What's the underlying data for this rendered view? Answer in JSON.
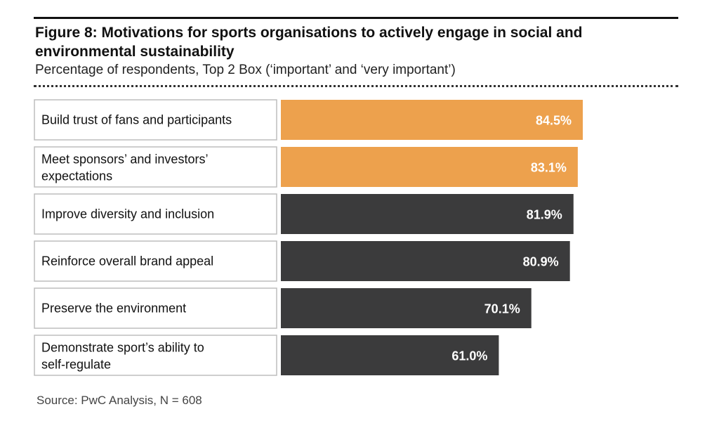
{
  "figure": {
    "title": "Figure 8: Motivations for sports organisations to actively engage in social and environmental sustainability",
    "subtitle": "Percentage of respondents, Top 2 Box (‘important’ and ‘very important’)",
    "source": "Source: PwC Analysis, N = 608"
  },
  "colors": {
    "highlight": "#EDA14D",
    "default": "#3B3B3C",
    "label_border": "#BDBDBD"
  },
  "chart_data": {
    "type": "bar",
    "orientation": "horizontal",
    "title": "Figure 8: Motivations for sports organisations to actively engage in social and environmental sustainability",
    "subtitle": "Percentage of respondents, Top 2 Box (‘important’ and ‘very important’)",
    "unit": "%",
    "xlim": [
      0,
      100
    ],
    "grid": false,
    "categories": [
      "Build trust of fans and participants",
      "Meet sponsors’ and investors’ expectations",
      "Improve diversity and inclusion",
      "Reinforce overall brand appeal",
      "Preserve the environment",
      "Demonstrate sport’s ability to self-regulate"
    ],
    "category_lines": [
      [
        "Build trust of fans and participants"
      ],
      [
        "Meet sponsors’ and investors’",
        "expectations"
      ],
      [
        "Improve diversity and inclusion"
      ],
      [
        "Reinforce overall brand appeal"
      ],
      [
        "Preserve the environment"
      ],
      [
        "Demonstrate sport’s ability to",
        "self-regulate"
      ]
    ],
    "values": [
      84.5,
      83.1,
      81.9,
      80.9,
      70.1,
      61.0
    ],
    "value_labels": [
      "84.5%",
      "83.1%",
      "81.9%",
      "80.9%",
      "70.1%",
      "61.0%"
    ],
    "highlighted": [
      true,
      true,
      false,
      false,
      false,
      false
    ]
  }
}
